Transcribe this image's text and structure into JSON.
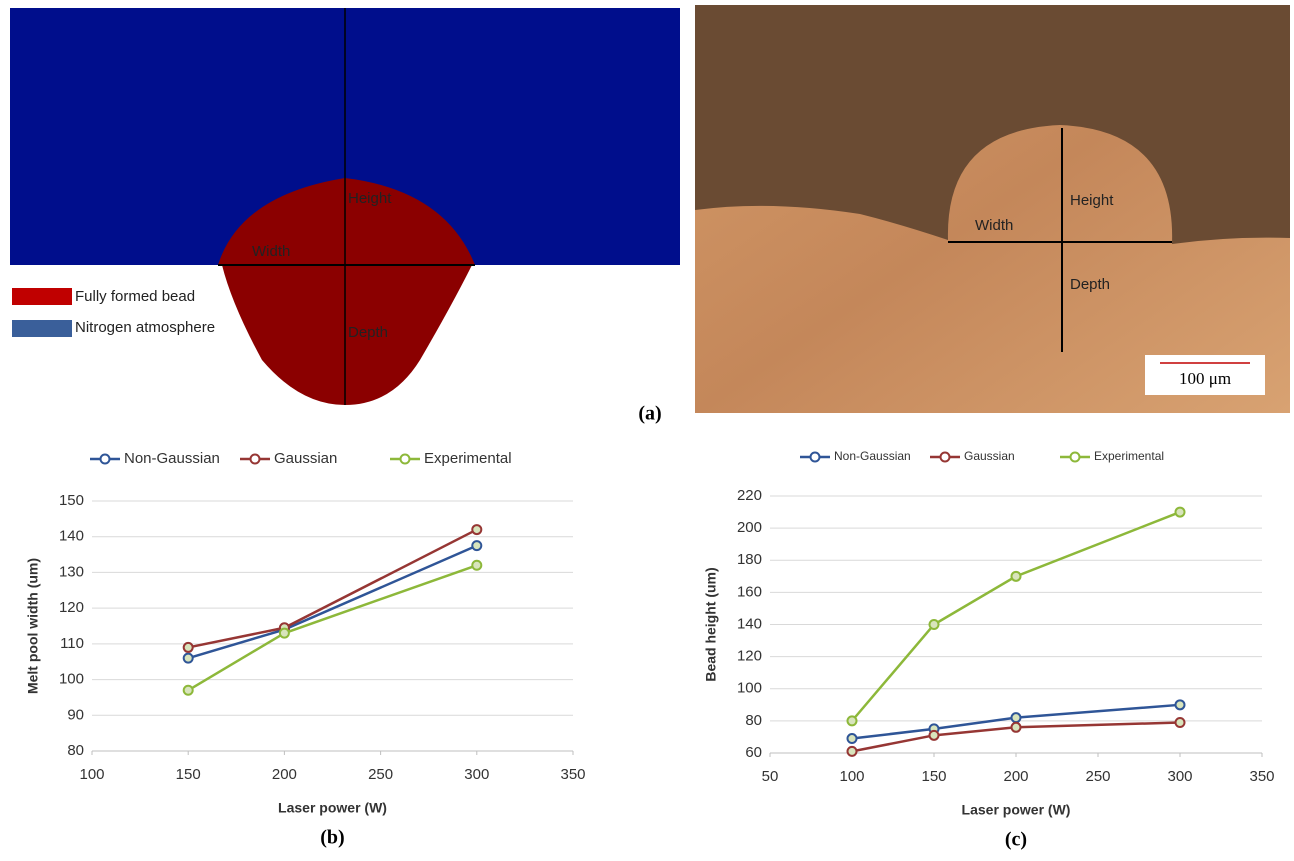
{
  "panel_a": {
    "simulation": {
      "height_label": "Height",
      "width_label": "Width",
      "depth_label": "Depth",
      "legend": [
        "Fully formed bead",
        "Nitrogen atmosphere"
      ]
    },
    "micrograph": {
      "width_label": "Width",
      "height_label": "Height",
      "depth_label": "Depth",
      "scale_bar": "100 μm"
    },
    "caption": "(a)"
  },
  "chart_data": [
    {
      "type": "line",
      "caption": "(b)",
      "x_label": "Laser power (W)",
      "y_label": "Melt pool width (um)",
      "x": [
        150,
        200,
        300
      ],
      "series": [
        {
          "name": "Non-Gaussian",
          "color": "#2f5597",
          "values": [
            106,
            114,
            137.5
          ]
        },
        {
          "name": "Gaussian",
          "color": "#963634",
          "values": [
            109,
            114.5,
            142
          ]
        },
        {
          "name": "Experimental",
          "color": "#8db83a",
          "values": [
            97,
            113,
            132
          ]
        }
      ],
      "xlim": [
        100,
        350
      ],
      "xticks": [
        100,
        150,
        200,
        250,
        300,
        350
      ],
      "ylim": [
        80,
        150
      ],
      "yticks": [
        80,
        90,
        100,
        110,
        120,
        130,
        140,
        150
      ],
      "grid": true
    },
    {
      "type": "line",
      "caption": "(c)",
      "x_label": "Laser power (W)",
      "y_label": "Bead height (um)",
      "x": [
        100,
        150,
        200,
        300
      ],
      "series": [
        {
          "name": "Non-Gaussian",
          "color": "#2f5597",
          "values": [
            69,
            75,
            82,
            90
          ]
        },
        {
          "name": "Gaussian",
          "color": "#963634",
          "values": [
            61,
            71,
            76,
            79
          ]
        },
        {
          "name": "Experimental",
          "color": "#8db83a",
          "values": [
            80,
            140,
            170,
            210
          ]
        }
      ],
      "xlim": [
        50,
        350
      ],
      "xticks": [
        50,
        100,
        150,
        200,
        250,
        300,
        350
      ],
      "ylim": [
        60,
        220
      ],
      "yticks": [
        60,
        80,
        100,
        120,
        140,
        160,
        180,
        200,
        220
      ],
      "grid": true
    }
  ]
}
